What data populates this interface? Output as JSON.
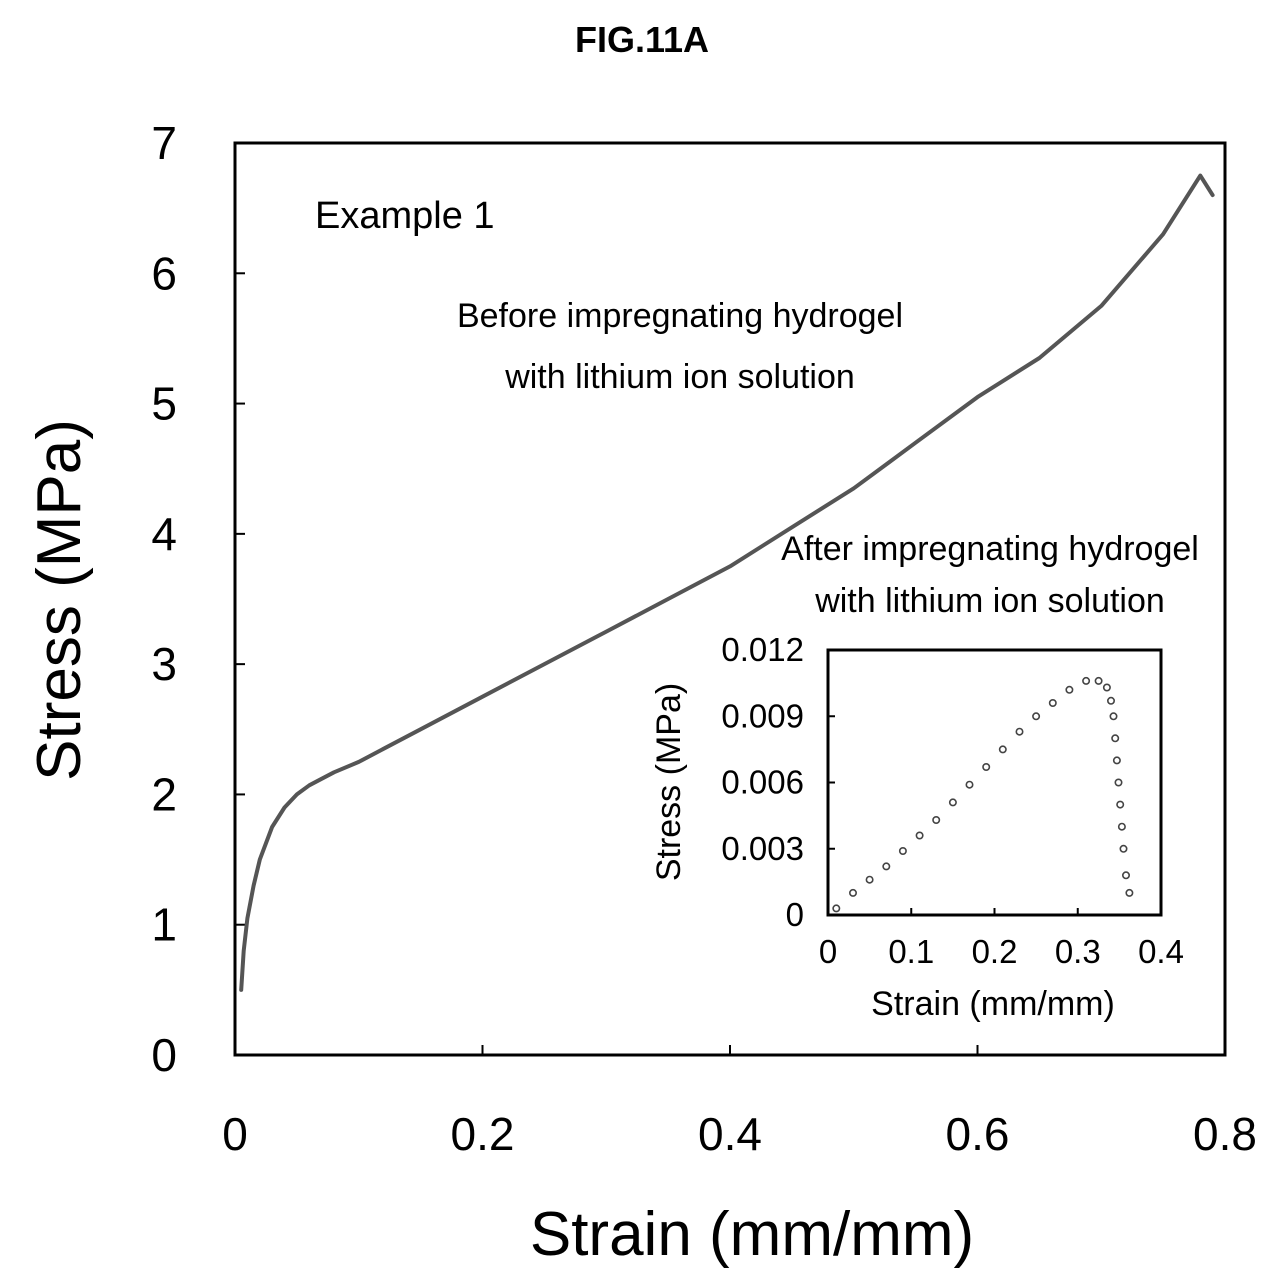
{
  "figure_title": "FIG.11A",
  "chart_data": [
    {
      "type": "line",
      "xlabel": "Strain (mm/mm)",
      "ylabel": "Stress (MPa)",
      "xlim": [
        0,
        0.8
      ],
      "ylim": [
        0,
        7
      ],
      "xticks": [
        "0",
        "0.2",
        "0.4",
        "0.6",
        "0.8"
      ],
      "yticks": [
        "0",
        "1",
        "2",
        "3",
        "4",
        "5",
        "6",
        "7"
      ],
      "annotations": [
        "Example 1",
        "Before impregnating hydrogel",
        "with lithium ion solution"
      ],
      "series": [
        {
          "x": [
            0.005,
            0.007,
            0.01,
            0.015,
            0.02,
            0.03,
            0.04,
            0.05,
            0.06,
            0.07,
            0.08,
            0.1,
            0.12,
            0.15,
            0.2,
            0.25,
            0.3,
            0.35,
            0.4,
            0.45,
            0.5,
            0.55,
            0.6,
            0.65,
            0.7,
            0.75,
            0.78,
            0.79
          ],
          "y": [
            0.5,
            0.8,
            1.05,
            1.3,
            1.5,
            1.75,
            1.9,
            2.0,
            2.07,
            2.12,
            2.17,
            2.25,
            2.35,
            2.5,
            2.75,
            3.0,
            3.25,
            3.5,
            3.75,
            4.05,
            4.35,
            4.7,
            5.05,
            5.35,
            5.75,
            6.3,
            6.75,
            6.6
          ]
        }
      ],
      "grid": false
    },
    {
      "type": "scatter",
      "xlabel": "Strain (mm/mm)",
      "ylabel": "Stress (MPa)",
      "xlim": [
        0,
        0.4
      ],
      "ylim": [
        0,
        0.012
      ],
      "xticks": [
        "0",
        "0.1",
        "0.2",
        "0.3",
        "0.4"
      ],
      "yticks": [
        "0",
        "0.003",
        "0.006",
        "0.009",
        "0.012"
      ],
      "annotations": [
        "After impregnating hydrogel",
        "with lithium ion solution"
      ],
      "series": [
        {
          "x": [
            0.01,
            0.03,
            0.05,
            0.07,
            0.09,
            0.11,
            0.13,
            0.15,
            0.17,
            0.19,
            0.21,
            0.23,
            0.25,
            0.27,
            0.29,
            0.31,
            0.325,
            0.335,
            0.34,
            0.343,
            0.345,
            0.347,
            0.349,
            0.351,
            0.353,
            0.355,
            0.358,
            0.362
          ],
          "y": [
            0.0003,
            0.001,
            0.0016,
            0.0022,
            0.0029,
            0.0036,
            0.0043,
            0.0051,
            0.0059,
            0.0067,
            0.0075,
            0.0083,
            0.009,
            0.0096,
            0.0102,
            0.0106,
            0.0106,
            0.0103,
            0.0097,
            0.009,
            0.008,
            0.007,
            0.006,
            0.005,
            0.004,
            0.003,
            0.0018,
            0.001
          ]
        }
      ],
      "grid": false
    }
  ]
}
